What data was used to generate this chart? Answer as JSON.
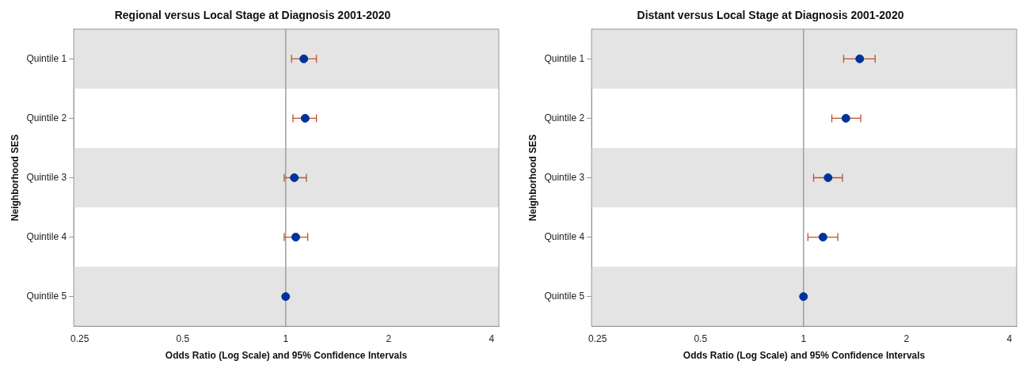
{
  "chart_data": [
    {
      "type": "scatter",
      "title": "Regional versus Local Stage at Diagnosis 2001-2020",
      "xlabel": "Odds Ratio (Log Scale) and 95% Confidence Intervals",
      "ylabel": "Neighborhood SES",
      "orientation": "horizontal",
      "categories": [
        "Quintile 1",
        "Quintile 2",
        "Quintile 3",
        "Quintile 4",
        "Quintile 5"
      ],
      "series": [
        {
          "color": "#003399",
          "values": [
            1.13,
            1.14,
            1.06,
            1.07,
            1
          ],
          "errors": [
            [
              1.04,
              1.23
            ],
            [
              1.05,
              1.23
            ],
            [
              0.99,
              1.15
            ],
            [
              0.99,
              1.16
            ],
            null
          ]
        }
      ],
      "log": "x",
      "xlim": [
        0.24,
        4.2
      ],
      "xticks": [
        0.25,
        0.5,
        1,
        2,
        4
      ],
      "ref_lines": [
        {
          "axis": "x",
          "value": 1,
          "color": "#a0a0a0"
        }
      ],
      "bands": [
        {
          "axis": "y",
          "from": "Quintile 1",
          "to": "Quintile 1",
          "color": "#e4e4e4"
        },
        {
          "axis": "y",
          "from": "Quintile 3",
          "to": "Quintile 3",
          "color": "#e4e4e4"
        },
        {
          "axis": "y",
          "from": "Quintile 5",
          "to": "Quintile 5",
          "color": "#e4e4e4"
        }
      ],
      "marker": "circle",
      "grid": false,
      "legend": false
    },
    {
      "type": "scatter",
      "title": "Distant versus Local Stage at Diagnosis 2001-2020",
      "xlabel": "Odds Ratio (Log Scale) and 95% Confidence Intervals",
      "ylabel": "Neighborhood SES",
      "orientation": "horizontal",
      "categories": [
        "Quintile 1",
        "Quintile 2",
        "Quintile 3",
        "Quintile 4",
        "Quintile 5"
      ],
      "series": [
        {
          "color": "#003399",
          "values": [
            1.46,
            1.33,
            1.18,
            1.14,
            1
          ],
          "errors": [
            [
              1.31,
              1.62
            ],
            [
              1.21,
              1.47
            ],
            [
              1.07,
              1.3
            ],
            [
              1.03,
              1.26
            ],
            null
          ]
        }
      ],
      "log": "x",
      "xlim": [
        0.24,
        4.2
      ],
      "xticks": [
        0.25,
        0.5,
        1,
        2,
        4
      ],
      "ref_lines": [
        {
          "axis": "x",
          "value": 1,
          "color": "#a0a0a0"
        }
      ],
      "bands": [
        {
          "axis": "y",
          "from": "Quintile 1",
          "to": "Quintile 1",
          "color": "#e4e4e4"
        },
        {
          "axis": "y",
          "from": "Quintile 3",
          "to": "Quintile 3",
          "color": "#e4e4e4"
        },
        {
          "axis": "y",
          "from": "Quintile 5",
          "to": "Quintile 5",
          "color": "#e4e4e4"
        }
      ],
      "marker": "circle",
      "grid": false,
      "legend": false
    }
  ]
}
